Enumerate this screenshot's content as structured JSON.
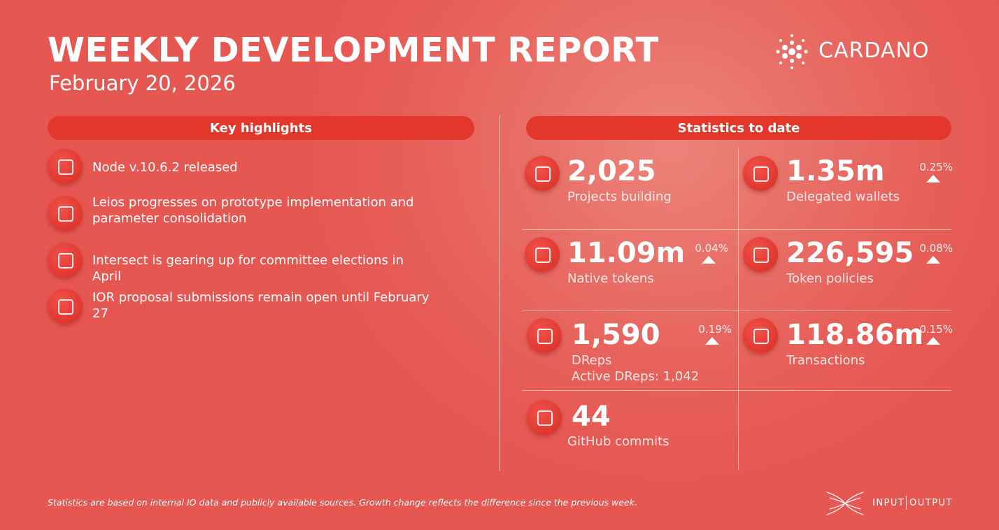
{
  "header": {
    "title": "WEEKLY DEVELOPMENT REPORT",
    "date": "February 20, 2026",
    "logo": "CARDANO"
  },
  "highlights": {
    "title": "Key highlights",
    "items": [
      "Node v.10.6.2 released",
      "Leios progresses on prototype implementation and parameter consolidation",
      "Intersect is gearing up for committee elections in April",
      "IOR proposal submissions remain open until February 27"
    ]
  },
  "statistics": {
    "title": "Statistics to date",
    "items": [
      {
        "value": "2,025",
        "label": "Projects building"
      },
      {
        "value": "1.35m",
        "label": "Delegated wallets",
        "change": "0.25%"
      },
      {
        "value": "11.09m",
        "label": "Native tokens",
        "change": "0.04%"
      },
      {
        "value": "226,595",
        "label": "Token policies",
        "change": "0.08%"
      },
      {
        "value": "1,590",
        "label": "DReps",
        "sublabel": "Active DReps: 1,042",
        "change": "0.19%"
      },
      {
        "value": "118.86m",
        "label": "Transactions",
        "change": "0.15%"
      },
      {
        "value": "44",
        "label": "GitHub commits"
      }
    ]
  },
  "footer": {
    "note": "Statistics are based on internal IO data and publicly available sources. Growth change reflects the difference since the previous week.",
    "brand_left": "INPUT",
    "brand_right": "OUTPUT"
  }
}
